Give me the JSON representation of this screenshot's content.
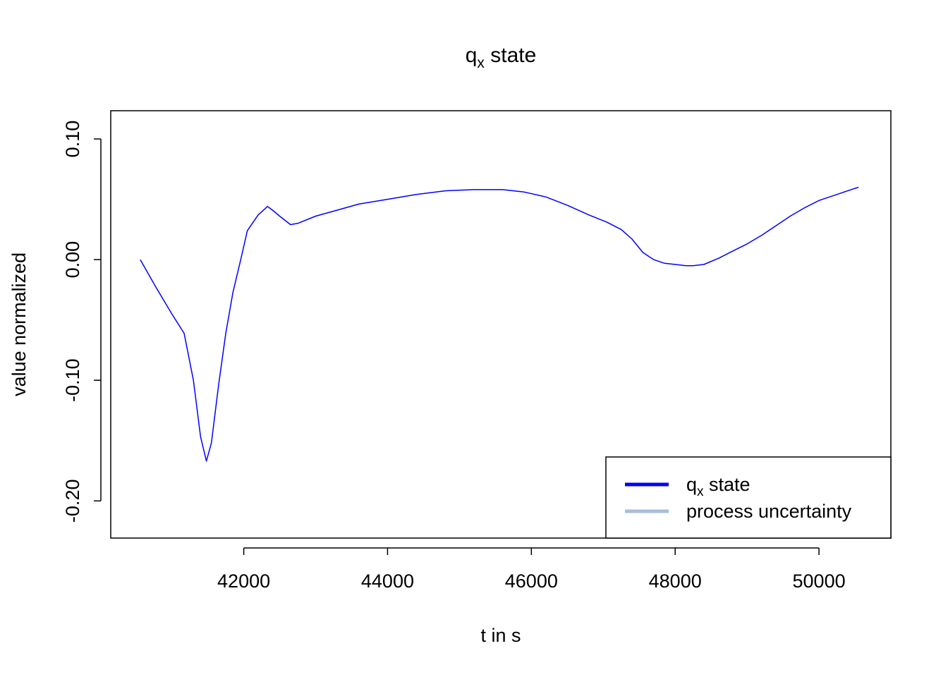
{
  "chart_data": {
    "type": "line",
    "title": "q",
    "title_subscript": "x",
    "title_suffix": " state",
    "xlabel": "t in s",
    "ylabel": "value normalized",
    "xlim": [
      40150,
      51000
    ],
    "ylim": [
      -0.2308,
      0.1234
    ],
    "x_ticks": [
      42000,
      44000,
      46000,
      48000,
      50000
    ],
    "x_tick_labels": [
      "42000",
      "44000",
      "46000",
      "48000",
      "50000"
    ],
    "y_ticks": [
      -0.2,
      -0.1,
      0.0,
      0.1
    ],
    "y_tick_labels": [
      "-0.20",
      "-0.10",
      "0.00",
      "0.10"
    ],
    "grid": false,
    "legend_position": "bottom-right",
    "series": [
      {
        "name": "q",
        "name_subscript": "x",
        "name_suffix": " state",
        "color": "#0000FF",
        "x": [
          40560,
          40780,
          41000,
          41170,
          41300,
          41400,
          41480,
          41550,
          41650,
          41750,
          41850,
          41950,
          42050,
          42200,
          42330,
          42400,
          42500,
          42650,
          42750,
          43000,
          43300,
          43600,
          44000,
          44400,
          44800,
          45200,
          45600,
          45900,
          46200,
          46500,
          46800,
          47050,
          47250,
          47400,
          47550,
          47700,
          47850,
          48000,
          48150,
          48250,
          48400,
          48600,
          48800,
          49000,
          49200,
          49400,
          49600,
          49800,
          50000,
          50200,
          50400,
          50550
        ],
        "y": [
          0.0,
          -0.023,
          -0.045,
          -0.061,
          -0.1,
          -0.147,
          -0.167,
          -0.152,
          -0.104,
          -0.061,
          -0.027,
          -0.002,
          0.024,
          0.037,
          0.044,
          0.041,
          0.036,
          0.029,
          0.03,
          0.036,
          0.041,
          0.046,
          0.05,
          0.054,
          0.057,
          0.058,
          0.058,
          0.056,
          0.052,
          0.045,
          0.037,
          0.031,
          0.025,
          0.017,
          0.006,
          0.0,
          -0.003,
          -0.004,
          -0.005,
          -0.005,
          -0.004,
          0.001,
          0.007,
          0.013,
          0.02,
          0.028,
          0.036,
          0.043,
          0.049,
          0.053,
          0.057,
          0.06
        ]
      },
      {
        "name": "process uncertainty",
        "color": "#A9BCDC"
      }
    ]
  }
}
